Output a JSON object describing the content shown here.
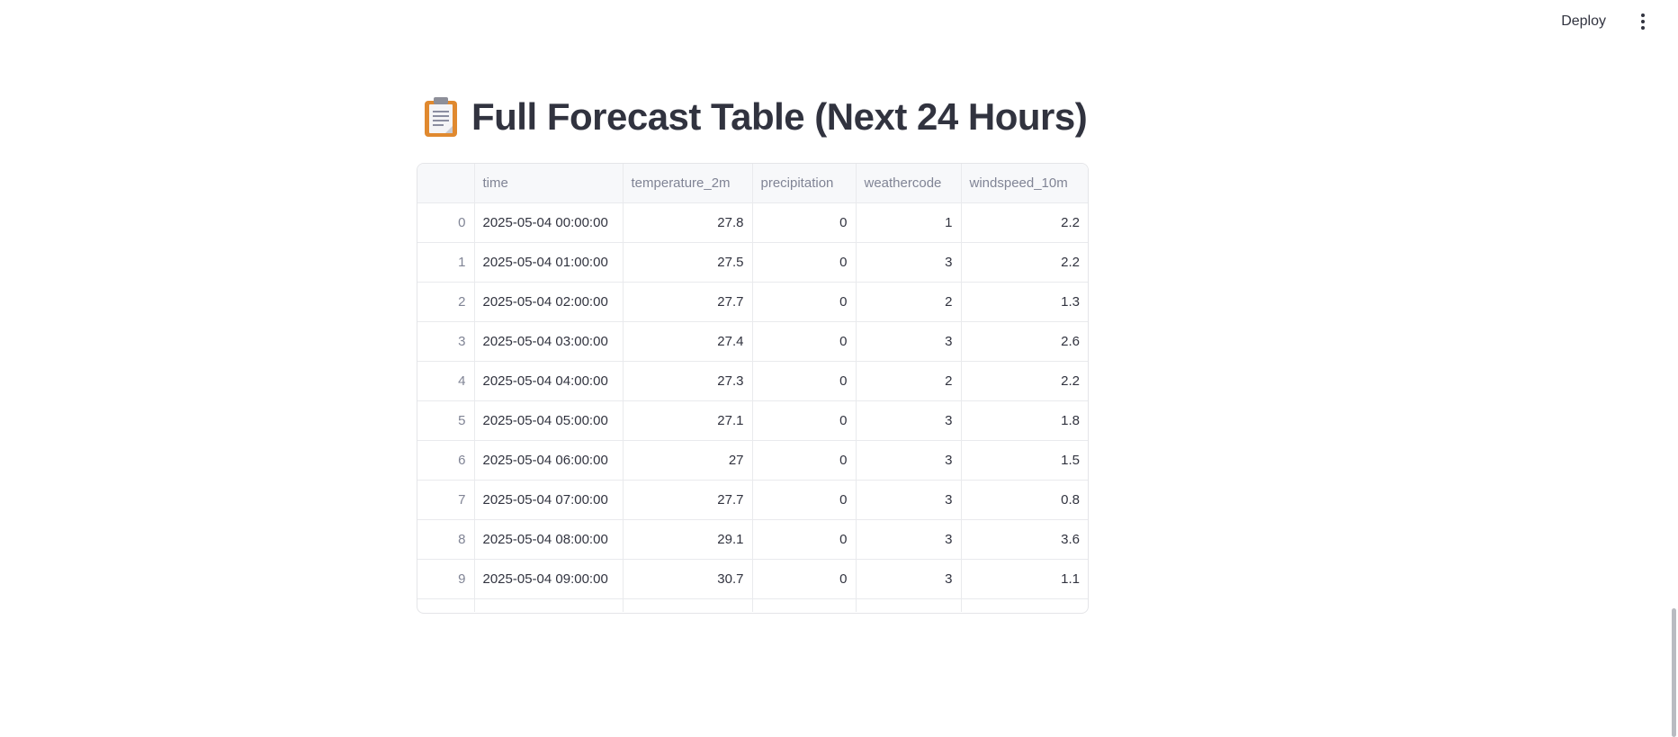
{
  "header": {
    "deploy_label": "Deploy",
    "menu_icon": "kebab-menu-icon"
  },
  "title": {
    "icon": "clipboard-icon",
    "text": "Full Forecast Table (Next 24 Hours)"
  },
  "table": {
    "columns": [
      "",
      "time",
      "temperature_2m",
      "precipitation",
      "weathercode",
      "windspeed_10m"
    ],
    "rows": [
      [
        "0",
        "2025-05-04 00:00:00",
        "27.8",
        "0",
        "1",
        "2.2"
      ],
      [
        "1",
        "2025-05-04 01:00:00",
        "27.5",
        "0",
        "3",
        "2.2"
      ],
      [
        "2",
        "2025-05-04 02:00:00",
        "27.7",
        "0",
        "2",
        "1.3"
      ],
      [
        "3",
        "2025-05-04 03:00:00",
        "27.4",
        "0",
        "3",
        "2.6"
      ],
      [
        "4",
        "2025-05-04 04:00:00",
        "27.3",
        "0",
        "2",
        "2.2"
      ],
      [
        "5",
        "2025-05-04 05:00:00",
        "27.1",
        "0",
        "3",
        "1.8"
      ],
      [
        "6",
        "2025-05-04 06:00:00",
        "27",
        "0",
        "3",
        "1.5"
      ],
      [
        "7",
        "2025-05-04 07:00:00",
        "27.7",
        "0",
        "3",
        "0.8"
      ],
      [
        "8",
        "2025-05-04 08:00:00",
        "29.1",
        "0",
        "3",
        "3.6"
      ],
      [
        "9",
        "2025-05-04 09:00:00",
        "30.7",
        "0",
        "3",
        "1.1"
      ]
    ]
  },
  "colors": {
    "text": "#31333f",
    "muted": "#808495",
    "header_bg": "#f7f8fa",
    "border": "#e4e5e8"
  }
}
